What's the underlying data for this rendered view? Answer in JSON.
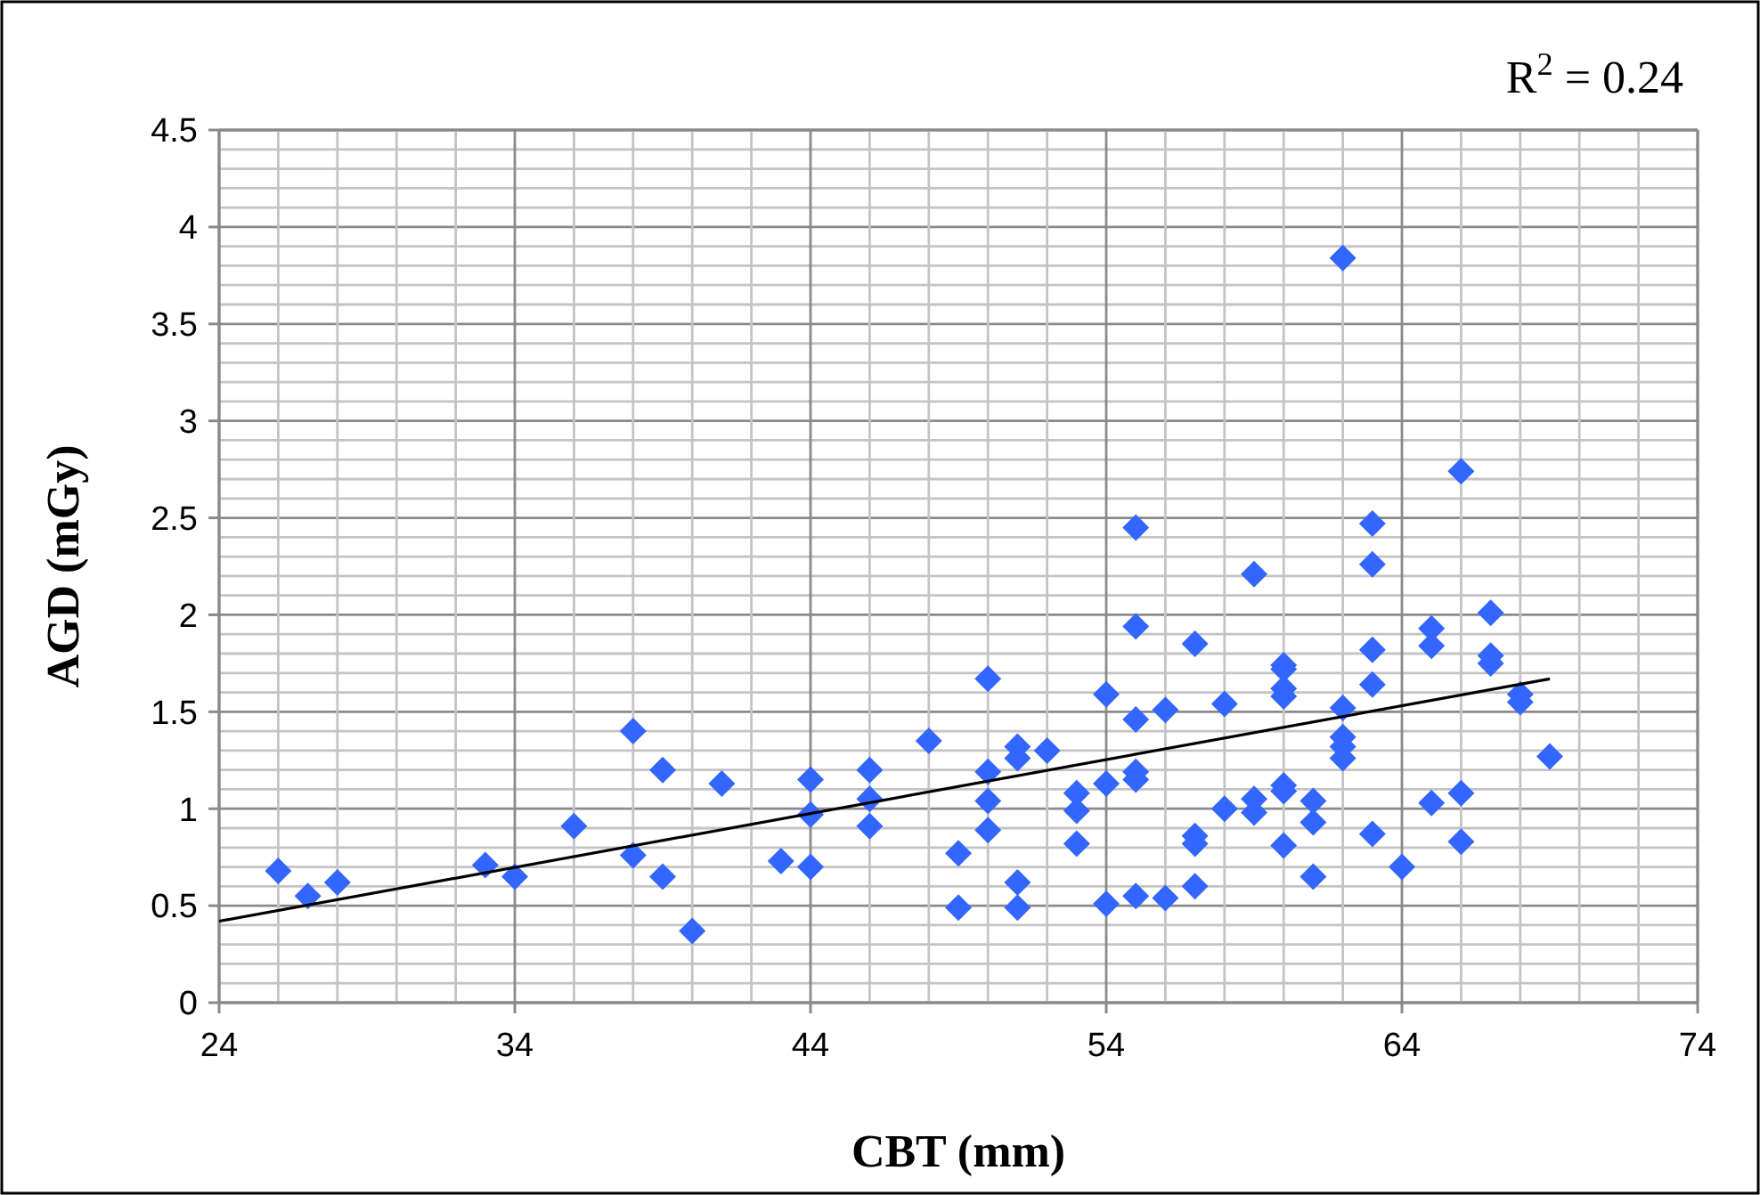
{
  "chart_data": {
    "type": "scatter",
    "xlabel": "CBT (mm)",
    "ylabel": "AGD (mGy)",
    "annotations": [
      "R$^{2}$ = 0.24"
    ],
    "xlim": [
      24,
      74
    ],
    "ylim": [
      0,
      4.5
    ],
    "xticks": [
      24,
      {
        "value": 26,
        "label": null
      },
      {
        "value": 28,
        "label": null
      },
      {
        "value": 30,
        "label": null
      },
      {
        "value": 32,
        "label": null
      },
      34,
      {
        "value": 36,
        "label": null
      },
      {
        "value": 38,
        "label": null
      },
      {
        "value": 40,
        "label": null
      },
      {
        "value": 42,
        "label": null
      },
      44,
      {
        "value": 46,
        "label": null
      },
      {
        "value": 48,
        "label": null
      },
      {
        "value": 50,
        "label": null
      },
      {
        "value": 52,
        "label": null
      },
      54,
      {
        "value": 56,
        "label": null
      },
      {
        "value": 58,
        "label": null
      },
      {
        "value": 60,
        "label": null
      },
      {
        "value": 62,
        "label": null
      },
      64,
      {
        "value": 66,
        "label": null
      },
      {
        "value": 68,
        "label": null
      },
      {
        "value": 70,
        "label": null
      },
      {
        "value": 72,
        "label": null
      },
      74
    ],
    "yticks": [
      0,
      {
        "value": 0.1,
        "label": null
      },
      {
        "value": 0.2,
        "label": null
      },
      {
        "value": 0.3,
        "label": null
      },
      {
        "value": 0.4,
        "label": null
      },
      0.5,
      {
        "value": 0.6,
        "label": null
      },
      {
        "value": 0.7,
        "label": null
      },
      {
        "value": 0.8,
        "label": null
      },
      {
        "value": 0.9,
        "label": null
      },
      1,
      {
        "value": 1.1,
        "label": null
      },
      {
        "value": 1.2,
        "label": null
      },
      {
        "value": 1.3,
        "label": null
      },
      {
        "value": 1.4,
        "label": null
      },
      1.5,
      {
        "value": 1.6,
        "label": null
      },
      {
        "value": 1.7,
        "label": null
      },
      {
        "value": 1.8,
        "label": null
      },
      {
        "value": 1.9,
        "label": null
      },
      2,
      {
        "value": 2.1,
        "label": null
      },
      {
        "value": 2.2,
        "label": null
      },
      {
        "value": 2.3,
        "label": null
      },
      {
        "value": 2.4,
        "label": null
      },
      2.5,
      {
        "value": 2.6,
        "label": null
      },
      {
        "value": 2.7,
        "label": null
      },
      {
        "value": 2.8,
        "label": null
      },
      {
        "value": 2.9,
        "label": null
      },
      3,
      {
        "value": 3.1,
        "label": null
      },
      {
        "value": 3.2,
        "label": null
      },
      {
        "value": 3.3,
        "label": null
      },
      {
        "value": 3.4,
        "label": null
      },
      3.5,
      {
        "value": 3.6,
        "label": null
      },
      {
        "value": 3.7,
        "label": null
      },
      {
        "value": 3.8,
        "label": null
      },
      {
        "value": 3.9,
        "label": null
      },
      4,
      {
        "value": 4.1,
        "label": null
      },
      {
        "value": 4.2,
        "label": null
      },
      {
        "value": 4.3,
        "label": null
      },
      {
        "value": 4.4,
        "label": null
      },
      4.5
    ],
    "grid": true,
    "series": [
      {
        "color": "#3366ff",
        "marker": "diamond",
        "x": [
          26,
          27,
          28,
          33,
          34,
          36,
          38,
          38,
          39,
          39,
          40,
          41,
          43,
          44,
          44,
          44,
          46,
          46,
          46,
          48,
          49,
          49,
          50,
          50,
          50,
          50,
          51,
          51,
          51,
          51,
          52,
          53,
          53,
          53,
          54,
          54,
          54,
          55,
          55,
          55,
          55,
          55,
          55,
          56,
          56,
          57,
          57,
          57,
          57,
          58,
          58,
          59,
          59,
          59,
          60,
          60,
          60,
          60,
          60,
          60,
          60,
          61,
          61,
          61,
          62,
          62,
          62,
          62,
          62,
          63,
          63,
          63,
          63,
          63,
          64,
          65,
          65,
          65,
          66,
          66,
          66,
          67,
          67,
          67,
          68,
          68,
          69
        ],
        "values": [
          0.68,
          0.55,
          0.62,
          0.71,
          0.65,
          0.91,
          1.4,
          0.76,
          1.2,
          0.65,
          0.37,
          1.13,
          0.73,
          1.15,
          0.97,
          0.7,
          1.2,
          1.05,
          0.91,
          1.35,
          0.77,
          0.49,
          1.67,
          1.19,
          1.04,
          0.89,
          1.32,
          1.26,
          0.62,
          0.49,
          1.3,
          1.08,
          0.99,
          0.82,
          1.59,
          1.13,
          0.51,
          2.45,
          1.94,
          1.46,
          1.19,
          1.15,
          0.55,
          1.51,
          0.54,
          1.85,
          0.86,
          0.82,
          0.6,
          1.54,
          1.0,
          2.21,
          1.05,
          0.98,
          1.74,
          1.72,
          1.62,
          1.58,
          1.12,
          1.09,
          0.81,
          1.04,
          0.93,
          0.65,
          3.84,
          1.52,
          1.37,
          1.32,
          1.26,
          2.47,
          2.26,
          1.82,
          1.64,
          0.87,
          0.7,
          1.93,
          1.84,
          1.03,
          2.74,
          1.08,
          0.83,
          2.01,
          1.79,
          1.75,
          1.59,
          1.55,
          1.27
        ]
      },
      {
        "type": "line",
        "color": "#000000",
        "marker": "none",
        "line_style": "solid",
        "x": [
          24,
          69
        ],
        "values": [
          0.42,
          1.67
        ]
      }
    ]
  }
}
